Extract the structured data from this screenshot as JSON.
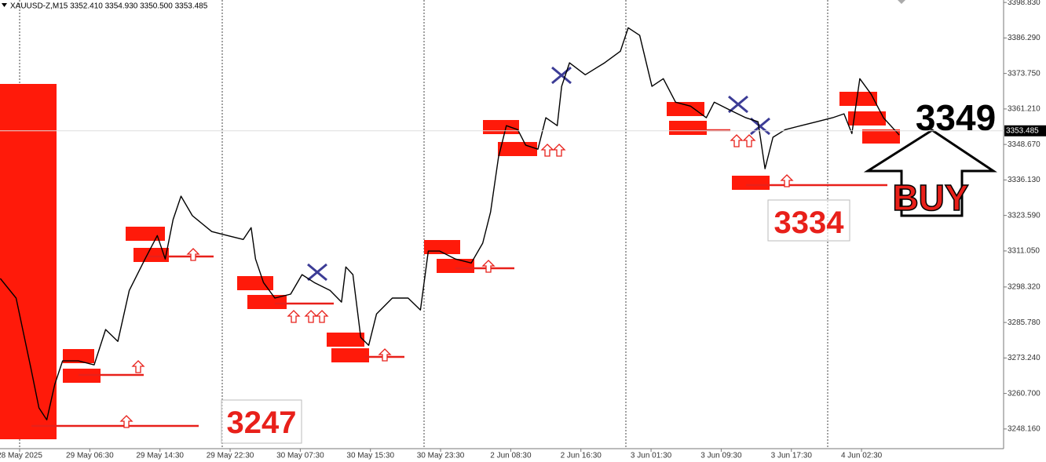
{
  "chart_data": {
    "type": "line",
    "title": "XAUUSD-Z,M15  3352.410 3354.930 3350.500 3353.485",
    "x": [
      -2.2,
      -0.4,
      1.3,
      2.2,
      3.1,
      4.0,
      4.9,
      6.7,
      8.5,
      9.8,
      11.2,
      12.5,
      14.3,
      15.7,
      16.6,
      17.5,
      18.4,
      19.7,
      21.9,
      23.7,
      25.5,
      26.4,
      26.9,
      27.8,
      29.1,
      30.9,
      32.2,
      33.6,
      35.4,
      36.7,
      37.2,
      38.0,
      38.9,
      39.8,
      40.7,
      42.5,
      44.3,
      45.7,
      46.6,
      47.9,
      49.7,
      51.5,
      52.8,
      53.7,
      54.6,
      55.5,
      56.8,
      57.7,
      59.1,
      60.0,
      61.3,
      61.8,
      62.7,
      64.5,
      66.7,
      68.5,
      69.4,
      70.7,
      72.1,
      73.4,
      74.8,
      76.5,
      78.3,
      79.2,
      81.0,
      82.8,
      84.2,
      85.0,
      85.9,
      87.3,
      89.1,
      90.9,
      92.7,
      94.0,
      94.9,
      95.8,
      97.1,
      98.5,
      100.3
    ],
    "series": [
      {
        "color": "#000000",
        "values": [
          3301.3,
          3294.4,
          3269.4,
          3255.6,
          3251.4,
          3263.9,
          3272.2,
          3272.2,
          3270.8,
          3283.3,
          3279.1,
          3297.1,
          3308.2,
          3316.5,
          3308.2,
          3322.1,
          3330.4,
          3323.5,
          3317.9,
          3316.5,
          3315.1,
          3319.3,
          3308.2,
          3299.9,
          3294.4,
          3295.8,
          3302.7,
          3299.9,
          3297.1,
          3293.0,
          3305.4,
          3302.7,
          3280.5,
          3277.7,
          3288.8,
          3294.4,
          3294.4,
          3290.2,
          3311.0,
          3311.0,
          3308.2,
          3306.8,
          3313.8,
          3324.8,
          3344.2,
          3355.3,
          3353.9,
          3348.4,
          3347.0,
          3358.1,
          3355.3,
          3369.2,
          3377.5,
          3373.3,
          3377.5,
          3381.6,
          3389.9,
          3387.2,
          3369.2,
          3371.9,
          3363.6,
          3362.2,
          3358.1,
          3363.6,
          3360.8,
          3358.1,
          3356.7,
          3340.1,
          3351.2,
          3353.9,
          3355.3,
          3356.7,
          3358.1,
          3359.5,
          3352.5,
          3371.9,
          3366.4,
          3358.1,
          3352.0
        ]
      }
    ],
    "xlim": [
      -2.24,
      112.2
    ],
    "ylim": [
      3241.2,
      3399.7
    ],
    "yticks": [
      {
        "value": 3398.83,
        "label": "3398.830"
      },
      {
        "value": 3386.29,
        "label": "3386.290"
      },
      {
        "value": 3373.75,
        "label": "3373.750"
      },
      {
        "value": 3361.21,
        "label": "3361.210"
      },
      {
        "value": 3348.67,
        "label": "3348.670"
      },
      {
        "value": 3336.13,
        "label": "3336.130"
      },
      {
        "value": 3323.59,
        "label": "3323.590"
      },
      {
        "value": 3311.05,
        "label": "3311.050"
      },
      {
        "value": 3298.32,
        "label": "3298.320"
      },
      {
        "value": 3285.78,
        "label": "3285.780"
      },
      {
        "value": 3273.24,
        "label": "3273.240"
      },
      {
        "value": 3260.7,
        "label": "3260.700"
      },
      {
        "value": 3248.16,
        "label": "3248.160"
      }
    ],
    "xticks": [
      {
        "value": 0,
        "label": "28 May 2025"
      },
      {
        "value": 8,
        "label": "29 May 06:30"
      },
      {
        "value": 16,
        "label": "29 May 14:30"
      },
      {
        "value": 24,
        "label": "29 May 22:30"
      },
      {
        "value": 32,
        "label": "30 May 07:30"
      },
      {
        "value": 40,
        "label": "30 May 15:30"
      },
      {
        "value": 48,
        "label": "30 May 23:30"
      },
      {
        "value": 56,
        "label": "2 Jun 08:30"
      },
      {
        "value": 64,
        "label": "2 Jun 16:30"
      },
      {
        "value": 72,
        "label": "3 Jun 01:30"
      },
      {
        "value": 80,
        "label": "3 Jun 09:30"
      },
      {
        "value": 88,
        "label": "3 Jun 17:30"
      },
      {
        "value": 96,
        "label": "4 Jun 02:30"
      }
    ],
    "current_price": 3353.485,
    "annotations": [
      "3247",
      "3334",
      "3349",
      "BUY"
    ]
  }
}
